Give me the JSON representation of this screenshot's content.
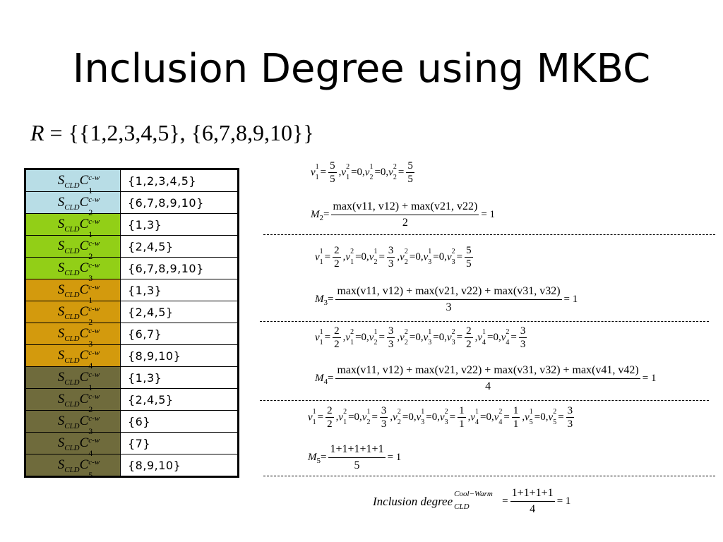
{
  "title": "Inclusion Degree using MKBC",
  "r_set": {
    "lhs": "R",
    "rhs": "= {{1,2,3,4,5}, {6,7,8,9,10}}"
  },
  "table": {
    "rows": [
      {
        "group": "g1",
        "base": "C",
        "sub": "1",
        "sup": "c-w",
        "prefix_sub": "CLD",
        "value": "{1,2,3,4,5}"
      },
      {
        "group": "g1",
        "base": "C",
        "sub": "2",
        "sup": "c-w",
        "prefix_sub": "CLD",
        "value": "{6,7,8,9,10}"
      },
      {
        "group": "g2",
        "base": "C",
        "sub": "1",
        "sup": "c-w",
        "prefix_sub": "CLD",
        "value": "{1,3}"
      },
      {
        "group": "g2",
        "base": "C",
        "sub": "2",
        "sup": "c-w",
        "prefix_sub": "CLD",
        "value": "{2,4,5}"
      },
      {
        "group": "g2",
        "base": "C",
        "sub": "3",
        "sup": "c-w",
        "prefix_sub": "CLD",
        "value": "{6,7,8,9,10}"
      },
      {
        "group": "g3",
        "base": "C",
        "sub": "1",
        "sup": "c-w",
        "prefix_sub": "CLD",
        "value": "{1,3}"
      },
      {
        "group": "g3",
        "base": "C",
        "sub": "2",
        "sup": "c-w",
        "prefix_sub": "CLD",
        "value": "{2,4,5}"
      },
      {
        "group": "g3",
        "base": "C",
        "sub": "3",
        "sup": "c-w",
        "prefix_sub": "CLD",
        "value": "{6,7}"
      },
      {
        "group": "g3",
        "base": "C",
        "sub": "4",
        "sup": "c-w",
        "prefix_sub": "CLD",
        "value": "{8,9,10}"
      },
      {
        "group": "g4",
        "base": "C",
        "sub": "1",
        "sup": "c-w",
        "prefix_sub": "CLD",
        "value": "{1,3}"
      },
      {
        "group": "g4",
        "base": "C",
        "sub": "2",
        "sup": "c-w",
        "prefix_sub": "CLD",
        "value": "{2,4,5}"
      },
      {
        "group": "g4",
        "base": "C",
        "sub": "3",
        "sup": "c-w",
        "prefix_sub": "CLD",
        "value": "{6}"
      },
      {
        "group": "g4",
        "base": "C",
        "sub": "4",
        "sup": "c-w",
        "prefix_sub": "CLD",
        "value": "{7}"
      },
      {
        "group": "g4",
        "base": "C",
        "sub": "5",
        "sup": "c-w",
        "prefix_sub": "CLD",
        "value": "{8,9,10}"
      }
    ],
    "colors": {
      "g1": "#b8dde6",
      "g2": "#92cf17",
      "g3": "#d39a0d",
      "g4": "#6f6b3c"
    }
  },
  "equations": {
    "block_m2": {
      "v_row": [
        {
          "v": "v",
          "up": "1",
          "dn": "1",
          "num": "5",
          "den": "5"
        },
        {
          "v": "v",
          "up": "2",
          "dn": "1",
          "val": "0"
        },
        {
          "v": "v",
          "up": "1",
          "dn": "2",
          "val": "0"
        },
        {
          "v": "v",
          "up": "2",
          "dn": "2",
          "num": "5",
          "den": "5"
        }
      ],
      "m_label": "M",
      "m_sub": "2",
      "m_num": "max(v11, v12) + max(v21, v22)",
      "m_den": "2",
      "m_result": "= 1"
    },
    "block_m3": {
      "v_row": [
        {
          "v": "v",
          "up": "1",
          "dn": "1",
          "num": "2",
          "den": "2"
        },
        {
          "v": "v",
          "up": "2",
          "dn": "1",
          "val": "0"
        },
        {
          "v": "v",
          "up": "1",
          "dn": "2",
          "num": "3",
          "den": "3"
        },
        {
          "v": "v",
          "up": "2",
          "dn": "2",
          "val": "0"
        },
        {
          "v": "v",
          "up": "1",
          "dn": "3",
          "val": "0"
        },
        {
          "v": "v",
          "up": "2",
          "dn": "3",
          "num": "5",
          "den": "5"
        }
      ],
      "m_label": "M",
      "m_sub": "3",
      "m_num": "max(v11, v12) + max(v21, v22) + max(v31, v32)",
      "m_den": "3",
      "m_result": "= 1"
    },
    "block_m4": {
      "v_row": [
        {
          "v": "v",
          "up": "1",
          "dn": "1",
          "num": "2",
          "den": "2"
        },
        {
          "v": "v",
          "up": "2",
          "dn": "1",
          "val": "0"
        },
        {
          "v": "v",
          "up": "1",
          "dn": "2",
          "num": "3",
          "den": "3"
        },
        {
          "v": "v",
          "up": "2",
          "dn": "2",
          "val": "0"
        },
        {
          "v": "v",
          "up": "1",
          "dn": "3",
          "val": "0"
        },
        {
          "v": "v",
          "up": "2",
          "dn": "3",
          "num": "2",
          "den": "2"
        },
        {
          "v": "v",
          "up": "1",
          "dn": "4",
          "val": "0"
        },
        {
          "v": "v",
          "up": "2",
          "dn": "4",
          "num": "3",
          "den": "3"
        }
      ],
      "m_label": "M",
      "m_sub": "4",
      "m_num": "max(v11, v12) + max(v21, v22) + max(v31, v32) + max(v41, v42)",
      "m_den": "4",
      "m_result": "= 1"
    },
    "block_m5": {
      "v_row": [
        {
          "v": "v",
          "up": "1",
          "dn": "1",
          "num": "2",
          "den": "2"
        },
        {
          "v": "v",
          "up": "2",
          "dn": "1",
          "val": "0"
        },
        {
          "v": "v",
          "up": "1",
          "dn": "2",
          "num": "3",
          "den": "3"
        },
        {
          "v": "v",
          "up": "2",
          "dn": "2",
          "val": "0"
        },
        {
          "v": "v",
          "up": "1",
          "dn": "3",
          "val": "0"
        },
        {
          "v": "v",
          "up": "2",
          "dn": "3",
          "num": "1",
          "den": "1"
        },
        {
          "v": "v",
          "up": "1",
          "dn": "4",
          "val": "0"
        },
        {
          "v": "v",
          "up": "2",
          "dn": "4",
          "num": "1",
          "den": "1"
        },
        {
          "v": "v",
          "up": "1",
          "dn": "5",
          "val": "0"
        },
        {
          "v": "v",
          "up": "2",
          "dn": "5",
          "num": "3",
          "den": "3"
        }
      ],
      "m_label": "M",
      "m_sub": "5",
      "m_num": "1+1+1+1+1",
      "m_den": "5",
      "m_result": "= 1"
    },
    "inclusion": {
      "label": "Inclusion degree",
      "sup": "Cool−Warm",
      "sub": "CLD",
      "num": "1+1+1+1",
      "den": "4",
      "result": "= 1"
    }
  }
}
